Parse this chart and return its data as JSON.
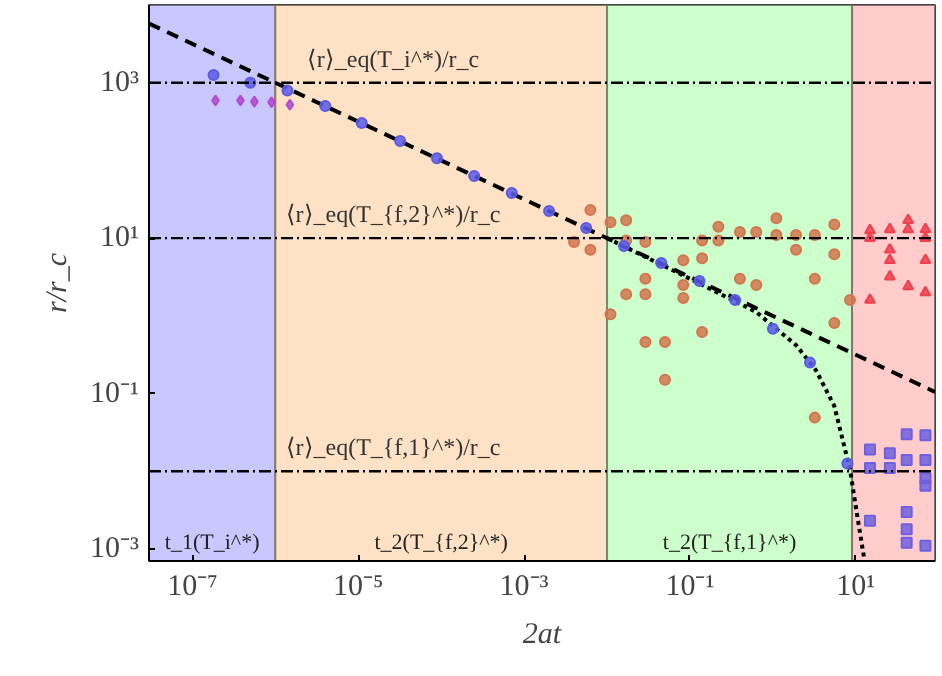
{
  "chart_data": {
    "type": "scatter",
    "xlabel": "2at",
    "ylabel": "r/r_c",
    "log": "xy",
    "xlim": [
      3e-08,
      90
    ],
    "ylim": [
      0.0007,
      10000
    ],
    "xticks": [
      {
        "value": 1e-07,
        "label": "10⁻⁷"
      },
      {
        "value": 1e-05,
        "label": "10⁻⁵"
      },
      {
        "value": 0.001,
        "label": "10⁻³"
      },
      {
        "value": 0.1,
        "label": "10⁻¹"
      },
      {
        "value": 10,
        "label": "10¹"
      }
    ],
    "yticks": [
      {
        "value": 0.001,
        "label": "10⁻³"
      },
      {
        "value": 0.1,
        "label": "10⁻¹"
      },
      {
        "value": 10,
        "label": "10¹"
      },
      {
        "value": 1000,
        "label": "10³"
      }
    ],
    "bands": [
      {
        "axis": "x",
        "from": 3e-08,
        "to": 1e-06,
        "label": "t_1(T_i^*)",
        "color": "#c8c8ff"
      },
      {
        "axis": "x",
        "from": 1e-06,
        "to": 0.01,
        "label": "t_2(T_{f,2}^*)",
        "color": "#ffe1c6"
      },
      {
        "axis": "x",
        "from": 0.01,
        "to": 9,
        "label": "t_2(T_{f,1}^*)",
        "color": "#ccffcc"
      },
      {
        "axis": "x",
        "from": 9,
        "to": 90,
        "label": null,
        "color": "#ffcccc"
      }
    ],
    "ref_lines": [
      {
        "axis": "y",
        "value": 1000,
        "label": "⟨r⟩_eq(T_i^*)/r_c",
        "color": "#000000",
        "line_style": "dashdot"
      },
      {
        "axis": "y",
        "value": 10,
        "label": "⟨r⟩_eq(T_{f,2}^*)/r_c",
        "color": "#000000",
        "line_style": "dashdot"
      },
      {
        "axis": "y",
        "value": 0.01,
        "label": "⟨r⟩_eq(T_{f,1}^*)/r_c",
        "color": "#000000",
        "line_style": "dashdot"
      }
    ],
    "series": [
      {
        "type": "line",
        "color": "#000000",
        "line_style": "dashed",
        "marker": "none",
        "x": [
          3e-08,
          90
        ],
        "values": [
          5774,
          0.105
        ]
      },
      {
        "type": "line",
        "color": "#000000",
        "line_style": "dotted",
        "marker": "none",
        "x": [
          0.01,
          0.1,
          0.63,
          1.1,
          1.9,
          3.3,
          5.5,
          8.5,
          10.5,
          12.6
        ],
        "values": [
          10,
          3.0,
          1.12,
          0.68,
          0.42,
          0.2,
          0.069,
          0.0105,
          0.0025,
          0.00075
        ]
      },
      {
        "color": "#d2764f",
        "marker": "circle",
        "x": [
          0.0063,
          0.004,
          0.0063,
          0.011,
          0.017,
          0.017,
          0.029,
          0.029,
          0.029,
          0.011,
          0.017,
          0.083,
          0.083,
          0.083,
          0.14,
          0.14,
          0.22,
          0.22,
          0.4,
          0.4,
          0.63,
          0.63,
          1.1,
          1.1,
          1.9,
          1.9,
          3.2,
          3.2,
          5.5,
          5.5,
          5.5,
          8.5,
          0.029,
          0.14,
          0.05,
          0.05,
          3.2
        ],
        "values": [
          23,
          8.9,
          7.1,
          16,
          17,
          9.3,
          8.9,
          3.0,
          1.9,
          1.05,
          1.9,
          5.2,
          2.5,
          1.7,
          5.5,
          9.3,
          14,
          9.3,
          12,
          3.0,
          12,
          2.5,
          18,
          11,
          11,
          7.1,
          11,
          3.0,
          15,
          6.2,
          0.81,
          1.6,
          0.46,
          0.62,
          0.46,
          0.15,
          0.049
        ]
      },
      {
        "type": "scatter",
        "color": "#f0404e",
        "marker": "triangle",
        "x": [
          14.8,
          14.8,
          14.8,
          25.7,
          25.7,
          25.7,
          25.7,
          42.7,
          42.7,
          42.7,
          69,
          69,
          69,
          69
        ],
        "values": [
          12.6,
          10,
          1.6,
          13,
          7.1,
          5.2,
          3.2,
          17,
          13,
          2.4,
          13,
          10,
          5.2,
          2.0
        ]
      },
      {
        "type": "scatter",
        "color": "#5a5ae6",
        "marker": "circle",
        "x": [
          1.8e-07,
          5e-07,
          1.4e-06,
          4e-06,
          1.1e-05,
          3.2e-05,
          8.9e-05,
          0.00025,
          0.00071,
          0.002,
          0.0056,
          0.016,
          0.045,
          0.13,
          0.35,
          1,
          2.8,
          7.9
        ],
        "values": [
          1260,
          1000,
          794,
          501,
          302,
          178,
          107,
          63,
          38,
          22.4,
          13.5,
          7.9,
          4.8,
          2.8,
          1.6,
          0.68,
          0.25,
          0.0126
        ]
      },
      {
        "type": "scatter",
        "color": "#b04ad0",
        "marker": "diamond",
        "x": [
          1.9e-07,
          3.8e-07,
          5.6e-07,
          9e-07,
          1.5e-06
        ],
        "values": [
          590,
          590,
          570,
          560,
          520
        ]
      },
      {
        "type": "scatter",
        "color": "#7060e0",
        "marker": "square",
        "x": [
          41,
          69,
          14.8,
          25.7,
          41,
          69,
          14.8,
          25.7,
          69,
          69,
          14.8,
          41,
          41,
          69,
          41
        ],
        "values": [
          0.03,
          0.029,
          0.019,
          0.017,
          0.014,
          0.014,
          0.011,
          0.011,
          0.0081,
          0.0065,
          0.0023,
          0.003,
          0.0018,
          0.0011,
          0.0012
        ]
      }
    ]
  }
}
